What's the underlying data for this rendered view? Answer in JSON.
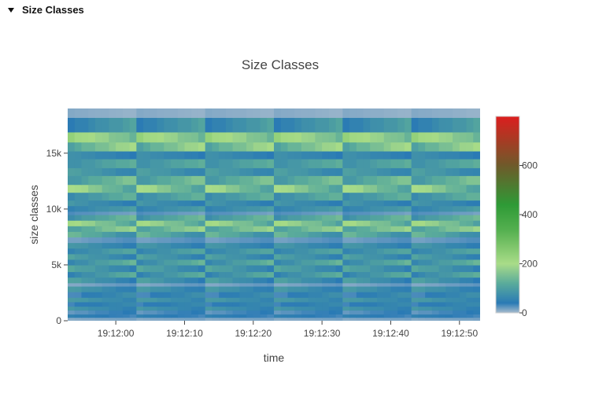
{
  "section": {
    "title": "Size Classes",
    "caret_icon": "caret-down-icon"
  },
  "chart_data": {
    "type": "heatmap",
    "title": "Size Classes",
    "xlabel": "time",
    "ylabel": "size classes",
    "x_tick_labels": [
      "19:12:00",
      "19:12:10",
      "19:12:20",
      "19:12:30",
      "19:12:40",
      "19:12:50"
    ],
    "x_range_seconds": [
      -7,
      53
    ],
    "y_ticks": [
      0,
      5000,
      10000,
      15000
    ],
    "y_tick_labels": [
      "0",
      "5k",
      "10k",
      "15k"
    ],
    "y_range": [
      0,
      19000
    ],
    "colorscale": {
      "min": 0,
      "max": 800,
      "ticks": [
        0,
        200,
        400,
        600
      ],
      "tick_labels": [
        "0",
        "200",
        "400",
        "600"
      ],
      "stops": [
        [
          0.0,
          "#a8bccd"
        ],
        [
          0.05,
          "#2a7ab5"
        ],
        [
          0.15,
          "#5aab9b"
        ],
        [
          0.25,
          "#a9dc88"
        ],
        [
          0.42,
          "#55b050"
        ],
        [
          0.55,
          "#2e9a36"
        ],
        [
          0.75,
          "#6f5a2a"
        ],
        [
          1.0,
          "#dc1e1e"
        ]
      ]
    },
    "rows": [
      {
        "y0": 0,
        "y1": 300,
        "v": [
          10,
          16
        ],
        "rh": 0
      },
      {
        "y0": 300,
        "y1": 600,
        "v": [
          30,
          55
        ],
        "rh": 1
      },
      {
        "y0": 600,
        "y1": 950,
        "v": [
          20,
          45
        ],
        "rh": 0
      },
      {
        "y0": 950,
        "y1": 1300,
        "v": [
          45,
          90
        ],
        "rh": 1
      },
      {
        "y0": 1300,
        "y1": 1700,
        "v": [
          30,
          70
        ],
        "rh": 0
      },
      {
        "y0": 1700,
        "y1": 2100,
        "v": [
          50,
          100
        ],
        "rh": 1
      },
      {
        "y0": 2100,
        "y1": 2600,
        "v": [
          25,
          80
        ],
        "rh": 0
      },
      {
        "y0": 2600,
        "y1": 3100,
        "v": [
          40,
          100
        ],
        "rh": 1
      },
      {
        "y0": 3100,
        "y1": 3400,
        "v": [
          10,
          25
        ],
        "rh": 0
      },
      {
        "y0": 3400,
        "y1": 3900,
        "v": [
          40,
          110
        ],
        "rh": 1
      },
      {
        "y0": 3900,
        "y1": 4400,
        "v": [
          50,
          130
        ],
        "rh": 0
      },
      {
        "y0": 4400,
        "y1": 5000,
        "v": [
          45,
          120
        ],
        "rh": 1
      },
      {
        "y0": 5000,
        "y1": 5500,
        "v": [
          55,
          140
        ],
        "rh": 0
      },
      {
        "y0": 5500,
        "y1": 6000,
        "v": [
          45,
          110
        ],
        "rh": 1
      },
      {
        "y0": 6000,
        "y1": 6500,
        "v": [
          50,
          120
        ],
        "rh": 0
      },
      {
        "y0": 6500,
        "y1": 7000,
        "v": [
          40,
          95
        ],
        "rh": 1
      },
      {
        "y0": 7000,
        "y1": 7500,
        "v": [
          15,
          30
        ],
        "rh": 0
      },
      {
        "y0": 7500,
        "y1": 8000,
        "v": [
          60,
          150
        ],
        "rh": 1
      },
      {
        "y0": 8000,
        "y1": 8500,
        "v": [
          90,
          200
        ],
        "rh": 0
      },
      {
        "y0": 8500,
        "y1": 9000,
        "v": [
          100,
          220
        ],
        "rh": 1
      },
      {
        "y0": 9000,
        "y1": 9500,
        "v": [
          70,
          150
        ],
        "rh": 0
      },
      {
        "y0": 9500,
        "y1": 9800,
        "v": [
          15,
          30
        ],
        "rh": 1
      },
      {
        "y0": 9800,
        "y1": 10300,
        "v": [
          50,
          100
        ],
        "rh": 0
      },
      {
        "y0": 10300,
        "y1": 10800,
        "v": [
          40,
          90
        ],
        "rh": 1
      },
      {
        "y0": 10800,
        "y1": 11500,
        "v": [
          60,
          140
        ],
        "rh": 0
      },
      {
        "y0": 11500,
        "y1": 12200,
        "v": [
          90,
          220
        ],
        "rh": 1
      },
      {
        "y0": 12200,
        "y1": 13000,
        "v": [
          80,
          170
        ],
        "rh": 0
      },
      {
        "y0": 13000,
        "y1": 13700,
        "v": [
          50,
          110
        ],
        "rh": 1
      },
      {
        "y0": 13700,
        "y1": 14500,
        "v": [
          70,
          130
        ],
        "rh": 0
      },
      {
        "y0": 14500,
        "y1": 15200,
        "v": [
          40,
          80
        ],
        "rh": 1
      },
      {
        "y0": 15200,
        "y1": 16000,
        "v": [
          100,
          210
        ],
        "rh": 0
      },
      {
        "y0": 16000,
        "y1": 16900,
        "v": [
          130,
          240
        ],
        "rh": 1
      },
      {
        "y0": 16900,
        "y1": 18200,
        "v": [
          40,
          110
        ],
        "rh": 0
      },
      {
        "y0": 18200,
        "y1": 19000,
        "v": [
          5,
          12
        ],
        "rh": 1
      }
    ]
  }
}
